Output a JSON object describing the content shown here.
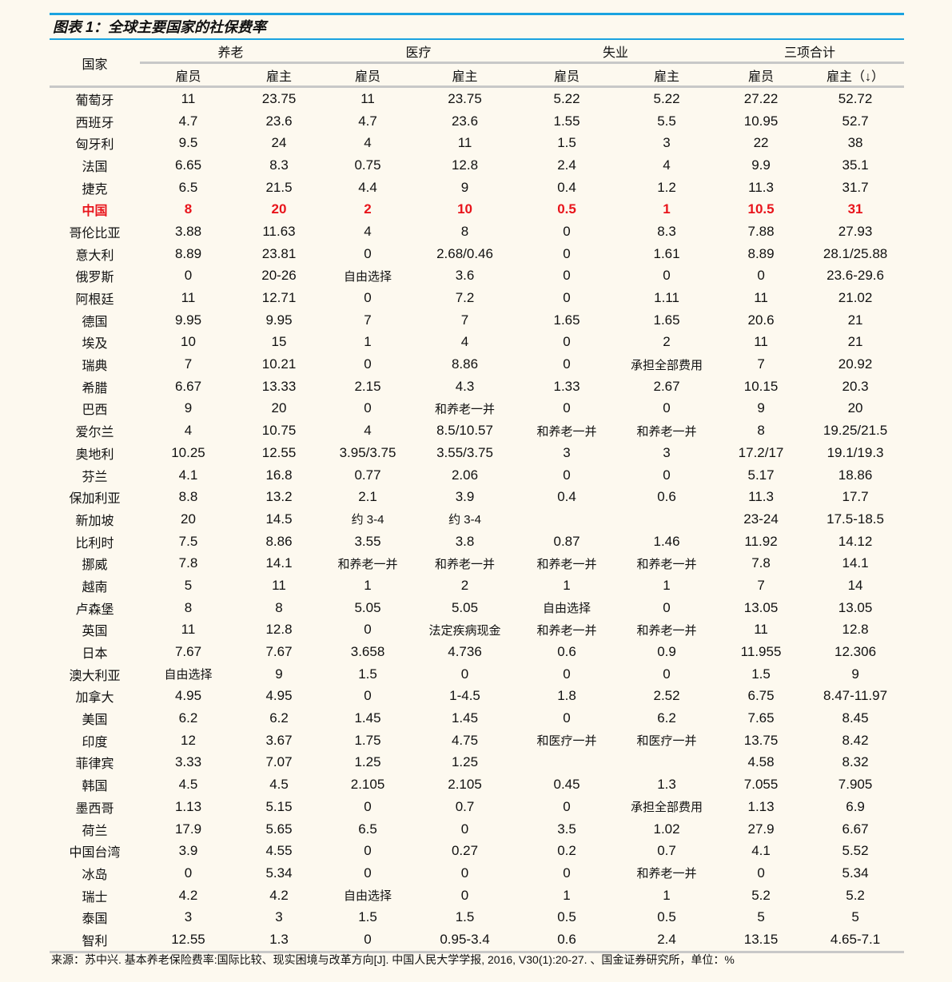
{
  "title": "图表 1：全球主要国家的社保费率",
  "header": {
    "country": "国家",
    "groups": [
      "养老",
      "医疗",
      "失业",
      "三项合计"
    ],
    "sub": [
      "雇员",
      "雇主",
      "雇员",
      "雇主",
      "雇员",
      "雇主",
      "雇员",
      "雇主（↓）"
    ]
  },
  "highlight_color": "#e8141b",
  "rows": [
    [
      "葡萄牙",
      "11",
      "23.75",
      "11",
      "23.75",
      "5.22",
      "5.22",
      "27.22",
      "52.72"
    ],
    [
      "西班牙",
      "4.7",
      "23.6",
      "4.7",
      "23.6",
      "1.55",
      "5.5",
      "10.95",
      "52.7"
    ],
    [
      "匈牙利",
      "9.5",
      "24",
      "4",
      "11",
      "1.5",
      "3",
      "22",
      "38"
    ],
    [
      "法国",
      "6.65",
      "8.3",
      "0.75",
      "12.8",
      "2.4",
      "4",
      "9.9",
      "35.1"
    ],
    [
      "捷克",
      "6.5",
      "21.5",
      "4.4",
      "9",
      "0.4",
      "1.2",
      "11.3",
      "31.7"
    ],
    [
      "中国",
      "8",
      "20",
      "2",
      "10",
      "0.5",
      "1",
      "10.5",
      "31"
    ],
    [
      "哥伦比亚",
      "3.88",
      "11.63",
      "4",
      "8",
      "0",
      "8.3",
      "7.88",
      "27.93"
    ],
    [
      "意大利",
      "8.89",
      "23.81",
      "0",
      "2.68/0.46",
      "0",
      "1.61",
      "8.89",
      "28.1/25.88"
    ],
    [
      "俄罗斯",
      "0",
      "20-26",
      "自由选择",
      "3.6",
      "0",
      "0",
      "0",
      "23.6-29.6"
    ],
    [
      "阿根廷",
      "11",
      "12.71",
      "0",
      "7.2",
      "0",
      "1.11",
      "11",
      "21.02"
    ],
    [
      "德国",
      "9.95",
      "9.95",
      "7",
      "7",
      "1.65",
      "1.65",
      "20.6",
      "21"
    ],
    [
      "埃及",
      "10",
      "15",
      "1",
      "4",
      "0",
      "2",
      "11",
      "21"
    ],
    [
      "瑞典",
      "7",
      "10.21",
      "0",
      "8.86",
      "0",
      "承担全部费用",
      "7",
      "20.92"
    ],
    [
      "希腊",
      "6.67",
      "13.33",
      "2.15",
      "4.3",
      "1.33",
      "2.67",
      "10.15",
      "20.3"
    ],
    [
      "巴西",
      "9",
      "20",
      "0",
      "和养老一并",
      "0",
      "0",
      "9",
      "20"
    ],
    [
      "爱尔兰",
      "4",
      "10.75",
      "4",
      "8.5/10.57",
      "和养老一并",
      "和养老一并",
      "8",
      "19.25/21.5"
    ],
    [
      "奥地利",
      "10.25",
      "12.55",
      "3.95/3.75",
      "3.55/3.75",
      "3",
      "3",
      "17.2/17",
      "19.1/19.3"
    ],
    [
      "芬兰",
      "4.1",
      "16.8",
      "0.77",
      "2.06",
      "0",
      "0",
      "5.17",
      "18.86"
    ],
    [
      "保加利亚",
      "8.8",
      "13.2",
      "2.1",
      "3.9",
      "0.4",
      "0.6",
      "11.3",
      "17.7"
    ],
    [
      "新加坡",
      "20",
      "14.5",
      "约 3-4",
      "约 3-4",
      "",
      "",
      "23-24",
      "17.5-18.5"
    ],
    [
      "比利时",
      "7.5",
      "8.86",
      "3.55",
      "3.8",
      "0.87",
      "1.46",
      "11.92",
      "14.12"
    ],
    [
      "挪威",
      "7.8",
      "14.1",
      "和养老一并",
      "和养老一并",
      "和养老一并",
      "和养老一并",
      "7.8",
      "14.1"
    ],
    [
      "越南",
      "5",
      "11",
      "1",
      "2",
      "1",
      "1",
      "7",
      "14"
    ],
    [
      "卢森堡",
      "8",
      "8",
      "5.05",
      "5.05",
      "自由选择",
      "0",
      "13.05",
      "13.05"
    ],
    [
      "英国",
      "11",
      "12.8",
      "0",
      "法定疾病现金",
      "和养老一并",
      "和养老一并",
      "11",
      "12.8"
    ],
    [
      "日本",
      "7.67",
      "7.67",
      "3.658",
      "4.736",
      "0.6",
      "0.9",
      "11.955",
      "12.306"
    ],
    [
      "澳大利亚",
      "自由选择",
      "9",
      "1.5",
      "0",
      "0",
      "0",
      "1.5",
      "9"
    ],
    [
      "加拿大",
      "4.95",
      "4.95",
      "0",
      "1-4.5",
      "1.8",
      "2.52",
      "6.75",
      "8.47-11.97"
    ],
    [
      "美国",
      "6.2",
      "6.2",
      "1.45",
      "1.45",
      "0",
      "6.2",
      "7.65",
      "8.45"
    ],
    [
      "印度",
      "12",
      "3.67",
      "1.75",
      "4.75",
      "和医疗一并",
      "和医疗一并",
      "13.75",
      "8.42"
    ],
    [
      "菲律宾",
      "3.33",
      "7.07",
      "1.25",
      "1.25",
      "",
      "",
      "4.58",
      "8.32"
    ],
    [
      "韩国",
      "4.5",
      "4.5",
      "2.105",
      "2.105",
      "0.45",
      "1.3",
      "7.055",
      "7.905"
    ],
    [
      "墨西哥",
      "1.13",
      "5.15",
      "0",
      "0.7",
      "0",
      "承担全部费用",
      "1.13",
      "6.9"
    ],
    [
      "荷兰",
      "17.9",
      "5.65",
      "6.5",
      "0",
      "3.5",
      "1.02",
      "27.9",
      "6.67"
    ],
    [
      "中国台湾",
      "3.9",
      "4.55",
      "0",
      "0.27",
      "0.2",
      "0.7",
      "4.1",
      "5.52"
    ],
    [
      "冰岛",
      "0",
      "5.34",
      "0",
      "0",
      "0",
      "和养老一并",
      "0",
      "5.34"
    ],
    [
      "瑞士",
      "4.2",
      "4.2",
      "自由选择",
      "0",
      "1",
      "1",
      "5.2",
      "5.2"
    ],
    [
      "泰国",
      "3",
      "3",
      "1.5",
      "1.5",
      "0.5",
      "0.5",
      "5",
      "5"
    ],
    [
      "智利",
      "12.55",
      "1.3",
      "0",
      "0.95-3.4",
      "0.6",
      "2.4",
      "13.15",
      "4.65-7.1"
    ]
  ],
  "highlight_row": "中国",
  "source": "来源：苏中兴. 基本养老保险费率:国际比较、现实困境与改革方向[J]. 中国人民大学学报, 2016, V30(1):20-27. 、国金证券研究所，单位：%"
}
